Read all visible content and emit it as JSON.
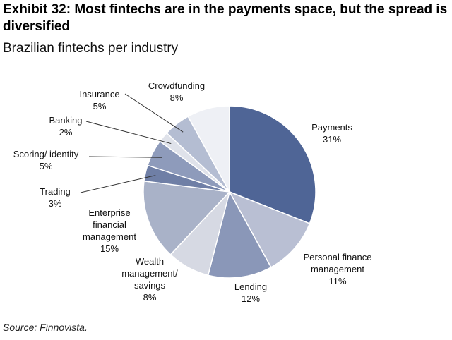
{
  "chart_data": {
    "type": "pie",
    "title": "Exhibit 32: Most fintechs are in the payments space, but the spread is diversified",
    "subtitle": "Brazilian fintechs per industry",
    "source": "Source: Finnovista.",
    "categories": [
      "Payments",
      "Personal finance management",
      "Lending",
      "Wealth management/ savings",
      "Enterprise financial management",
      "Trading",
      "Scoring/ identity",
      "Banking",
      "Insurance",
      "Crowdfunding"
    ],
    "values": [
      31,
      11,
      12,
      8,
      15,
      3,
      5,
      2,
      5,
      8
    ],
    "value_labels": [
      "31%",
      "11%",
      "12%",
      "8%",
      "15%",
      "3%",
      "5%",
      "2%",
      "5%",
      "8%"
    ],
    "colors": [
      "#4f6596",
      "#b9bfd3",
      "#8a97b8",
      "#d6d9e3",
      "#a9b2c8",
      "#6f7fa6",
      "#8e9bbb",
      "#dfe2ea",
      "#b4bdd2",
      "#eef0f5"
    ]
  }
}
